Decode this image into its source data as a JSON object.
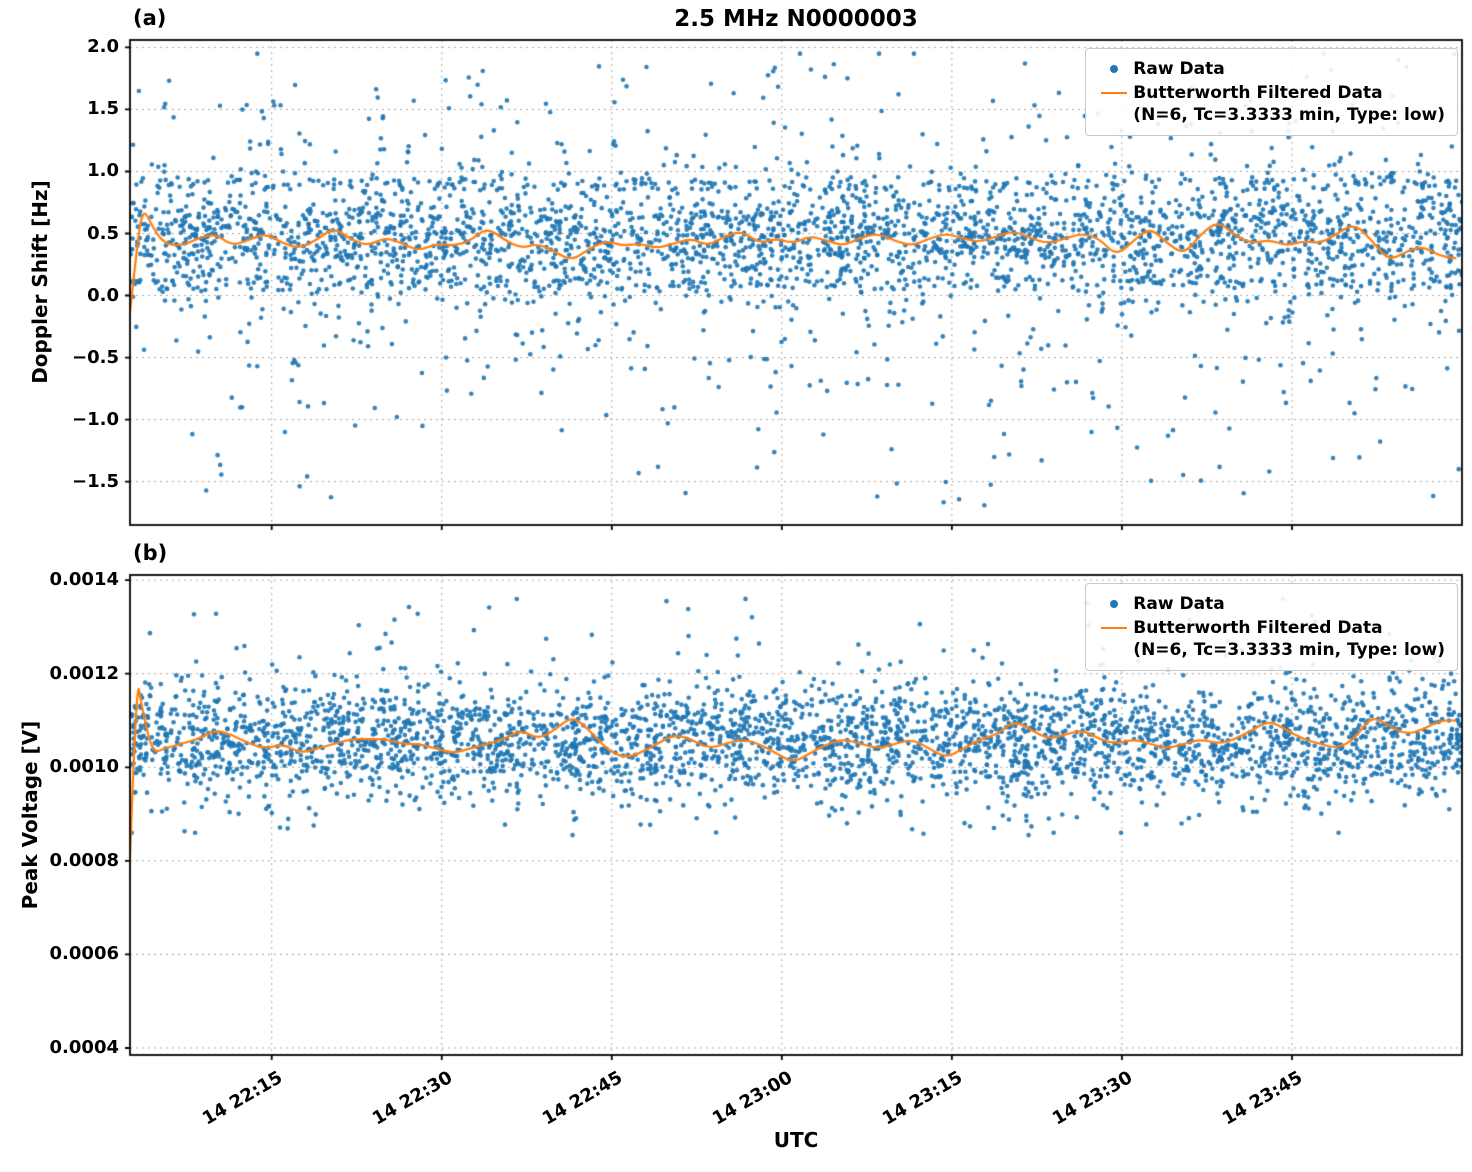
{
  "chart_data": {
    "type": "scatter",
    "title": "2.5 MHz N0000003",
    "xlabel": "UTC",
    "x_axis": {
      "unit": "minutes after 14 22:00 UTC",
      "range_minutes": [
        2.5,
        120
      ],
      "ticks": [
        {
          "minute": 15,
          "label": "14 22:15"
        },
        {
          "minute": 30,
          "label": "14 22:30"
        },
        {
          "minute": 45,
          "label": "14 22:45"
        },
        {
          "minute": 60,
          "label": "14 23:00"
        },
        {
          "minute": 75,
          "label": "14 23:15"
        },
        {
          "minute": 90,
          "label": "14 23:30"
        },
        {
          "minute": 105,
          "label": "14 23:45"
        }
      ]
    },
    "legend": {
      "raw": "Raw Data",
      "filtered_line1": "Butterworth Filtered Data",
      "filtered_line2": "(N=6, Tc=3.3333 min, Type: low)"
    },
    "colors": {
      "raw_scatter": "#1f77b4",
      "filtered_line": "#ff7f0e",
      "grid": "#aaaaaa",
      "spine": "#000000",
      "text": "#000000"
    },
    "panels": [
      {
        "label": "(a)",
        "ylabel": "Doppler Shift [Hz]",
        "ylim": [
          -1.85,
          2.06
        ],
        "yticks": [
          {
            "value": 2.0,
            "label": "2.0"
          },
          {
            "value": 1.5,
            "label": "1.5"
          },
          {
            "value": 1.0,
            "label": "1.0"
          },
          {
            "value": 0.5,
            "label": "0.5"
          },
          {
            "value": 0.0,
            "label": "0.0"
          },
          {
            "value": -0.5,
            "label": "−0.5"
          },
          {
            "value": -1.0,
            "label": "−1.0"
          },
          {
            "value": -1.5,
            "label": "−1.5"
          }
        ],
        "filtered_line": [
          [
            2,
            -0.55
          ],
          [
            3,
            0.3
          ],
          [
            3.6,
            0.72
          ],
          [
            4.5,
            0.55
          ],
          [
            5.5,
            0.42
          ],
          [
            7,
            0.4
          ],
          [
            8.5,
            0.46
          ],
          [
            10,
            0.5
          ],
          [
            11.5,
            0.4
          ],
          [
            13,
            0.45
          ],
          [
            14.5,
            0.5
          ],
          [
            16,
            0.42
          ],
          [
            17.5,
            0.38
          ],
          [
            19,
            0.45
          ],
          [
            20.5,
            0.55
          ],
          [
            22,
            0.45
          ],
          [
            23.5,
            0.4
          ],
          [
            25,
            0.47
          ],
          [
            26.5,
            0.42
          ],
          [
            28,
            0.36
          ],
          [
            29.5,
            0.42
          ],
          [
            31,
            0.4
          ],
          [
            32.5,
            0.44
          ],
          [
            34,
            0.55
          ],
          [
            35.5,
            0.45
          ],
          [
            37,
            0.38
          ],
          [
            38.5,
            0.42
          ],
          [
            40,
            0.35
          ],
          [
            41.5,
            0.28
          ],
          [
            43,
            0.38
          ],
          [
            44.5,
            0.44
          ],
          [
            46,
            0.4
          ],
          [
            47.5,
            0.42
          ],
          [
            49,
            0.38
          ],
          [
            50.5,
            0.42
          ],
          [
            52,
            0.46
          ],
          [
            53.5,
            0.4
          ],
          [
            55,
            0.48
          ],
          [
            56.5,
            0.52
          ],
          [
            58,
            0.42
          ],
          [
            59.5,
            0.46
          ],
          [
            61,
            0.42
          ],
          [
            62.5,
            0.48
          ],
          [
            64,
            0.44
          ],
          [
            65.5,
            0.4
          ],
          [
            67,
            0.47
          ],
          [
            68.5,
            0.5
          ],
          [
            70,
            0.44
          ],
          [
            71.5,
            0.4
          ],
          [
            73,
            0.46
          ],
          [
            74.5,
            0.5
          ],
          [
            76,
            0.46
          ],
          [
            77.5,
            0.43
          ],
          [
            79,
            0.48
          ],
          [
            80.5,
            0.52
          ],
          [
            82,
            0.46
          ],
          [
            83.5,
            0.42
          ],
          [
            85,
            0.46
          ],
          [
            86.5,
            0.5
          ],
          [
            88,
            0.46
          ],
          [
            89.5,
            0.32
          ],
          [
            91,
            0.44
          ],
          [
            92.5,
            0.55
          ],
          [
            94,
            0.42
          ],
          [
            95.5,
            0.33
          ],
          [
            97,
            0.5
          ],
          [
            98.5,
            0.6
          ],
          [
            100,
            0.48
          ],
          [
            101.5,
            0.42
          ],
          [
            103,
            0.45
          ],
          [
            104.5,
            0.4
          ],
          [
            106,
            0.44
          ],
          [
            107.5,
            0.42
          ],
          [
            109,
            0.5
          ],
          [
            110.5,
            0.58
          ],
          [
            112,
            0.45
          ],
          [
            113.5,
            0.28
          ],
          [
            115,
            0.35
          ],
          [
            116.5,
            0.4
          ],
          [
            118,
            0.32
          ],
          [
            119.5,
            0.3
          ]
        ],
        "raw_scatter_model": {
          "n": 3600,
          "seed": 42,
          "x_range": [
            2.5,
            120
          ],
          "components": [
            {
              "type": "normal",
              "weight": 0.42,
              "mean": 0.45,
              "sd": 0.22,
              "clip": [
                -0.35,
                1.25
              ]
            },
            {
              "type": "bands",
              "weight": 0.3,
              "levels": [
                0.1,
                0.35,
                0.5,
                0.65,
                0.9
              ],
              "jitter": 0.035
            },
            {
              "type": "normal",
              "weight": 0.22,
              "mean": 0.4,
              "sd": 0.6,
              "clip": [
                -1.45,
                1.95
              ]
            },
            {
              "type": "uniform",
              "weight": 0.06,
              "range": [
                -1.7,
                1.9
              ]
            }
          ]
        },
        "anchor_points": []
      },
      {
        "label": "(b)",
        "ylabel": "Peak Voltage [V]",
        "ylim": [
          0.000385,
          0.001411
        ],
        "yticks": [
          {
            "value": 0.0014,
            "label": "0.0014"
          },
          {
            "value": 0.0012,
            "label": "0.0012"
          },
          {
            "value": 0.001,
            "label": "0.0010"
          },
          {
            "value": 0.0008,
            "label": "0.0008"
          },
          {
            "value": 0.0006,
            "label": "0.0006"
          },
          {
            "value": 0.0004,
            "label": "0.0004"
          }
        ],
        "filtered_line": [
          [
            2,
            0.00045
          ],
          [
            3,
            0.00121
          ],
          [
            3.6,
            0.00112
          ],
          [
            4.5,
            0.00103
          ],
          [
            5.5,
            0.00104
          ],
          [
            7,
            0.00105
          ],
          [
            8.5,
            0.00106
          ],
          [
            10,
            0.00108
          ],
          [
            11.5,
            0.00107
          ],
          [
            13,
            0.00105
          ],
          [
            14.5,
            0.00104
          ],
          [
            16,
            0.00105
          ],
          [
            17.5,
            0.00103
          ],
          [
            19,
            0.00104
          ],
          [
            20.5,
            0.00105
          ],
          [
            22,
            0.00106
          ],
          [
            23.5,
            0.00106
          ],
          [
            25,
            0.00106
          ],
          [
            26.5,
            0.00105
          ],
          [
            28,
            0.00105
          ],
          [
            29.5,
            0.00104
          ],
          [
            31,
            0.00103
          ],
          [
            32.5,
            0.00104
          ],
          [
            34,
            0.00105
          ],
          [
            35.5,
            0.00106
          ],
          [
            37,
            0.00108
          ],
          [
            38.5,
            0.00106
          ],
          [
            40,
            0.00108
          ],
          [
            41.5,
            0.00111
          ],
          [
            43,
            0.00108
          ],
          [
            44.5,
            0.00104
          ],
          [
            46,
            0.00102
          ],
          [
            47.5,
            0.00103
          ],
          [
            49,
            0.00105
          ],
          [
            50.5,
            0.00107
          ],
          [
            52,
            0.00106
          ],
          [
            53.5,
            0.00104
          ],
          [
            55,
            0.00105
          ],
          [
            56.5,
            0.00106
          ],
          [
            58,
            0.00105
          ],
          [
            59.5,
            0.00103
          ],
          [
            61,
            0.00101
          ],
          [
            62.5,
            0.00103
          ],
          [
            64,
            0.00105
          ],
          [
            65.5,
            0.00106
          ],
          [
            67,
            0.00105
          ],
          [
            68.5,
            0.00104
          ],
          [
            70,
            0.00105
          ],
          [
            71.5,
            0.00106
          ],
          [
            73,
            0.00104
          ],
          [
            74.5,
            0.00102
          ],
          [
            76,
            0.00104
          ],
          [
            77.5,
            0.00106
          ],
          [
            79,
            0.00107
          ],
          [
            80.5,
            0.0011
          ],
          [
            82,
            0.00108
          ],
          [
            83.5,
            0.00106
          ],
          [
            85,
            0.00107
          ],
          [
            86.5,
            0.00108
          ],
          [
            88,
            0.00106
          ],
          [
            89.5,
            0.00105
          ],
          [
            91,
            0.00106
          ],
          [
            92.5,
            0.00105
          ],
          [
            94,
            0.00104
          ],
          [
            95.5,
            0.00105
          ],
          [
            97,
            0.00106
          ],
          [
            98.5,
            0.00105
          ],
          [
            100,
            0.00106
          ],
          [
            101.5,
            0.00108
          ],
          [
            103,
            0.0011
          ],
          [
            104.5,
            0.00108
          ],
          [
            106,
            0.00106
          ],
          [
            107.5,
            0.00105
          ],
          [
            109,
            0.00104
          ],
          [
            110.5,
            0.00106
          ],
          [
            112,
            0.00111
          ],
          [
            113.5,
            0.00109
          ],
          [
            115,
            0.00107
          ],
          [
            116.5,
            0.00108
          ],
          [
            118,
            0.0011
          ],
          [
            119.5,
            0.0011
          ]
        ],
        "raw_scatter_model": {
          "n": 3600,
          "seed": 7,
          "x_range": [
            2.5,
            120
          ],
          "components": [
            {
              "type": "normal",
              "weight": 0.82,
              "mean": 0.001055,
              "sd": 6e-05,
              "clip": [
                0.000855,
                0.00131
              ]
            },
            {
              "type": "normal",
              "weight": 0.15,
              "mean": 0.00108,
              "sd": 9e-05,
              "clip": [
                0.00086,
                0.00136
              ]
            },
            {
              "type": "uniform",
              "weight": 0.03,
              "range": [
                0.00088,
                0.00137
              ]
            }
          ]
        },
        "anchor_points": [
          [
            2,
            0.00045
          ]
        ]
      }
    ]
  }
}
